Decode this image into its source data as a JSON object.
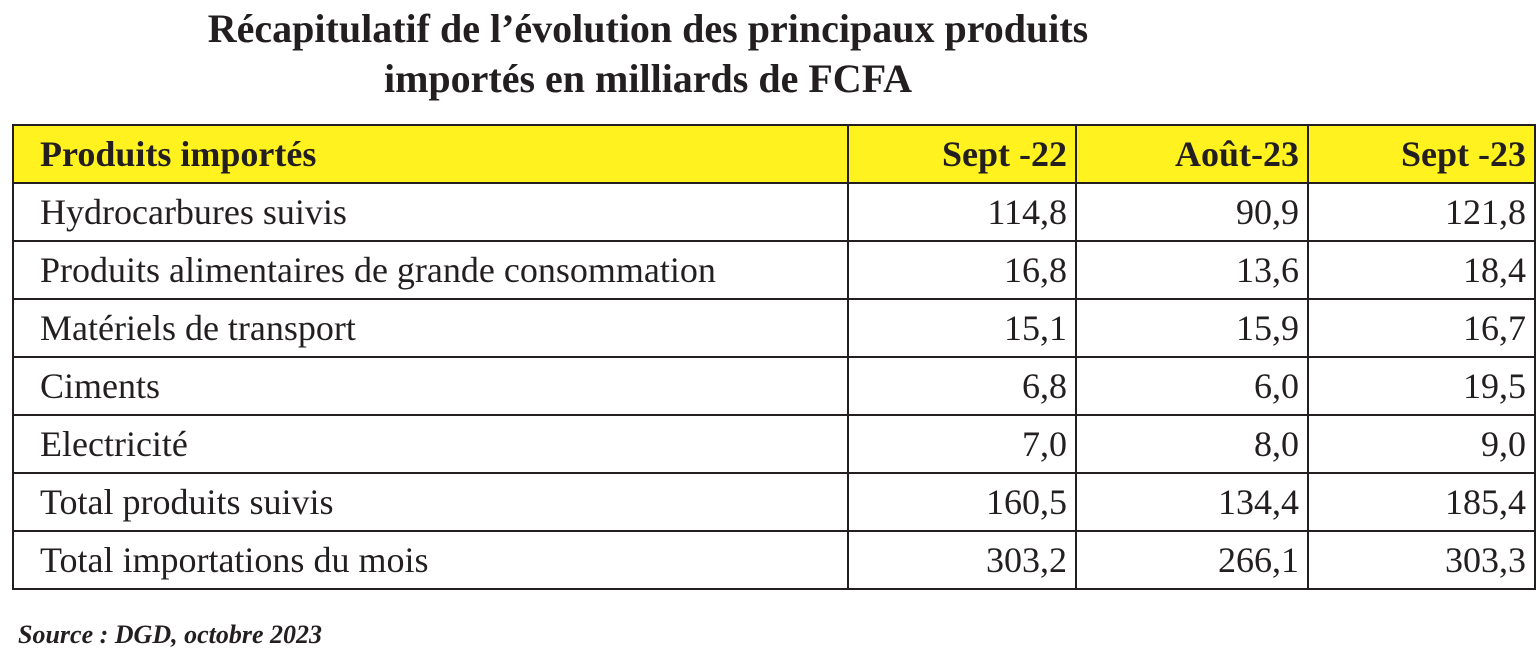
{
  "header": {
    "title": [
      "Récapitulatif de l’évolution des principaux produits",
      "importés en milliards de FCFA"
    ]
  },
  "table": {
    "columns": [
      "Produits importés",
      "Sept -22",
      "Août-23",
      "Sept -23"
    ],
    "rows": [
      [
        "Hydrocarbures suivis",
        "114,8",
        "90,9",
        "121,8"
      ],
      [
        "Produits alimentaires de grande consommation",
        "16,8",
        "13,6",
        "18,4"
      ],
      [
        "Matériels de transport",
        "15,1",
        "15,9",
        "16,7"
      ],
      [
        "Ciments",
        "6,8",
        "6,0",
        "19,5"
      ],
      [
        "Electricité",
        "7,0",
        "8,0",
        "9,0"
      ],
      [
        "Total produits suivis",
        "160,5",
        "134,4",
        "185,4"
      ],
      [
        "Total importations du mois",
        "303,2",
        "266,1",
        "303,3"
      ]
    ]
  },
  "footer": {
    "source": "Source : DGD, octobre 2023"
  }
}
